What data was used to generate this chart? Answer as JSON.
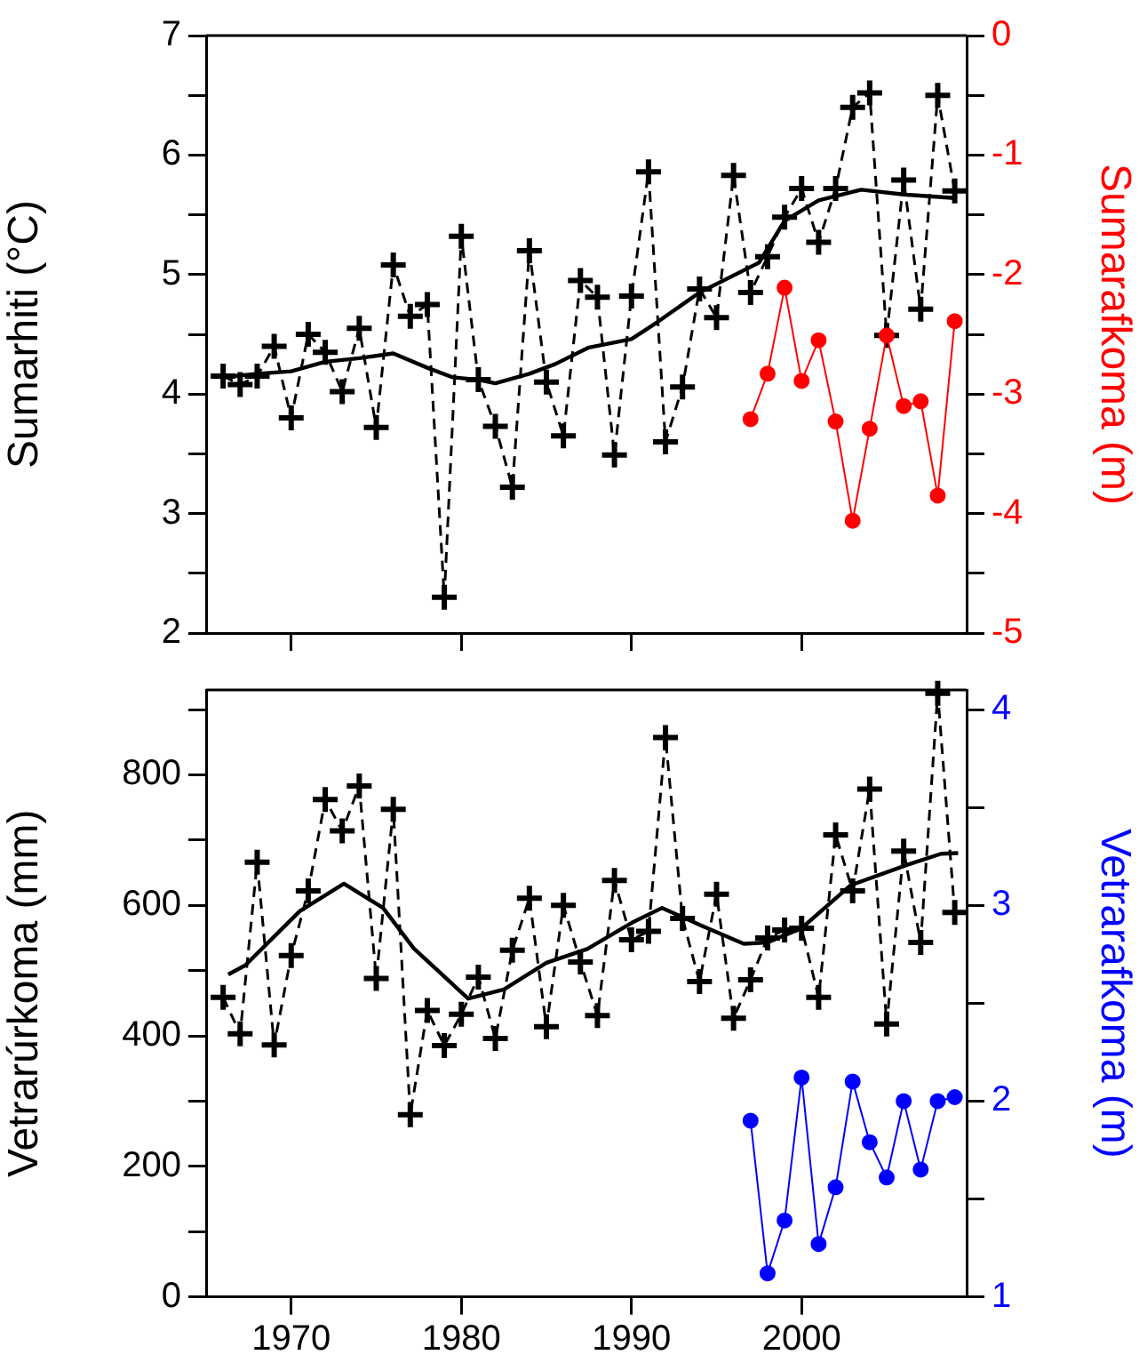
{
  "chart_data": [
    {
      "type": "line",
      "ylabel": "Sumarhiti (°C)",
      "y2label": "Sumarafkoma (m)",
      "xlim": [
        1965,
        2009.7
      ],
      "xticks": [
        1970,
        1980,
        1990,
        2000
      ],
      "ylim": [
        2,
        7
      ],
      "yticks": [
        2,
        {
          "value": 2.5,
          "label": null
        },
        3,
        {
          "value": 3.5,
          "label": null
        },
        4,
        {
          "value": 4.5,
          "label": null
        },
        5,
        {
          "value": 5.5,
          "label": null
        },
        6,
        {
          "value": 6.5,
          "label": null
        },
        7
      ],
      "y2lim": [
        -5,
        0
      ],
      "y2ticks": [
        -5,
        {
          "value": -4.5,
          "label": null
        },
        -4,
        {
          "value": -3.5,
          "label": null
        },
        -3,
        {
          "value": -2.5,
          "label": null
        },
        -2,
        {
          "value": -1.5,
          "label": null
        },
        -1,
        {
          "value": -0.5,
          "label": null
        },
        0
      ],
      "tick_labels": "y",
      "legend": false,
      "x": [
        1966,
        1967,
        1968,
        1969,
        1970,
        1971,
        1972,
        1973,
        1974,
        1975,
        1976,
        1977,
        1978,
        1979,
        1980,
        1981,
        1982,
        1983,
        1984,
        1985,
        1986,
        1987,
        1988,
        1989,
        1990,
        1991,
        1992,
        1993,
        1994,
        1995,
        1996,
        1997,
        1998,
        1999,
        2000,
        2001,
        2002,
        2003,
        2004,
        2005,
        2006,
        2007,
        2008,
        2009
      ],
      "series": [
        {
          "color": "#000000",
          "marker": "cross",
          "line_style": "dashed",
          "values": [
            4.15,
            4.08,
            4.15,
            4.4,
            3.8,
            4.5,
            4.35,
            4.02,
            4.55,
            3.72,
            5.08,
            4.65,
            4.75,
            2.3,
            5.32,
            4.12,
            3.73,
            3.22,
            5.2,
            4.1,
            3.65,
            4.95,
            4.81,
            3.49,
            4.82,
            5.86,
            3.6,
            4.06,
            4.88,
            4.64,
            5.83,
            4.85,
            5.15,
            5.48,
            5.72,
            5.27,
            5.72,
            6.4,
            6.52,
            4.49,
            5.79,
            4.71,
            6.5,
            5.7
          ]
        },
        {
          "color": "#000000",
          "marker": "none",
          "line_style": "solid",
          "x": [
            1966,
            1968,
            1970,
            1972,
            1974,
            1976,
            1978,
            1979.5,
            1981,
            1982,
            1984,
            1985.5,
            1987.5,
            1990,
            1991.5,
            1994,
            1997.5,
            1999,
            2001,
            2003.5,
            2006,
            2009
          ],
          "values": [
            4.14,
            4.17,
            4.19,
            4.27,
            4.3,
            4.34,
            4.22,
            4.14,
            4.12,
            4.09,
            4.17,
            4.25,
            4.39,
            4.46,
            4.6,
            4.85,
            5.1,
            5.45,
            5.62,
            5.71,
            5.67,
            5.64
          ]
        },
        {
          "color": "#ff0000",
          "marker": "circle",
          "line_style": "solid",
          "axis": "y2",
          "x": [
            1997,
            1998,
            1999,
            2000,
            2001,
            2002,
            2003,
            2004,
            2005,
            2006,
            2007,
            2008,
            2009
          ],
          "values": [
            -3.21,
            -2.83,
            -2.11,
            -2.89,
            -2.55,
            -3.23,
            -4.06,
            -3.29,
            -2.51,
            -3.1,
            -3.06,
            -3.85,
            -2.39
          ]
        }
      ]
    },
    {
      "type": "line",
      "ylabel": "Vetrarúrkoma (mm)",
      "y2label": "Vetrarafkoma (m)",
      "xlim": [
        1965,
        2009.7
      ],
      "xticks": [
        1970,
        1980,
        1990,
        2000
      ],
      "ylim": [
        0,
        930
      ],
      "yticks": [
        0,
        {
          "value": 100,
          "label": null
        },
        200,
        {
          "value": 300,
          "label": null
        },
        400,
        {
          "value": 500,
          "label": null
        },
        600,
        {
          "value": 700,
          "label": null
        },
        800,
        {
          "value": 900,
          "label": null
        }
      ],
      "y2lim": [
        1,
        4.1
      ],
      "y2ticks": [
        1,
        {
          "value": 1.5,
          "label": null
        },
        2,
        {
          "value": 2.5,
          "label": null
        },
        3,
        {
          "value": 3.5,
          "label": null
        },
        4
      ],
      "legend": false,
      "x": [
        1966,
        1967,
        1968,
        1969,
        1970,
        1971,
        1972,
        1973,
        1974,
        1975,
        1976,
        1977,
        1978,
        1979,
        1980,
        1981,
        1982,
        1983,
        1984,
        1985,
        1986,
        1987,
        1988,
        1989,
        1990,
        1991,
        1992,
        1993,
        1994,
        1995,
        1996,
        1997,
        1998,
        1999,
        2000,
        2001,
        2002,
        2003,
        2004,
        2005,
        2006,
        2007,
        2008,
        2009
      ],
      "series": [
        {
          "color": "#000000",
          "marker": "cross",
          "line_style": "dashed",
          "values": [
            459,
            403,
            666,
            386,
            523,
            622,
            762,
            714,
            783,
            488,
            747,
            279,
            439,
            385,
            433,
            490,
            396,
            531,
            611,
            414,
            600,
            513,
            431,
            638,
            547,
            560,
            857,
            580,
            483,
            617,
            427,
            486,
            550,
            562,
            565,
            459,
            708,
            622,
            778,
            418,
            683,
            543,
            925,
            589
          ]
        },
        {
          "color": "#000000",
          "marker": "none",
          "line_style": "solid",
          "x": [
            1966.3,
            1967.3,
            1970.5,
            1973.1,
            1975.4,
            1977.2,
            1980.4,
            1982.5,
            1985,
            1987.4,
            1990,
            1991.8,
            1994.1,
            1996.6,
            1998,
            2000,
            2002.9,
            2006.1,
            2008.2,
            2009.2
          ],
          "values": [
            494,
            508,
            591,
            633,
            596,
            534,
            457,
            471,
            512,
            533,
            573,
            596,
            569,
            541,
            543,
            565,
            631,
            661,
            679,
            680
          ]
        },
        {
          "color": "#0000ff",
          "marker": "circle",
          "line_style": "solid",
          "axis": "y2",
          "x": [
            1997,
            1998,
            1999,
            2000,
            2001,
            2002,
            2003,
            2004,
            2005,
            2006,
            2007,
            2008,
            2009
          ],
          "values": [
            1.9,
            1.12,
            1.39,
            2.12,
            1.27,
            1.56,
            2.1,
            1.79,
            1.61,
            2.0,
            1.65,
            2.0,
            2.02
          ]
        }
      ]
    }
  ]
}
